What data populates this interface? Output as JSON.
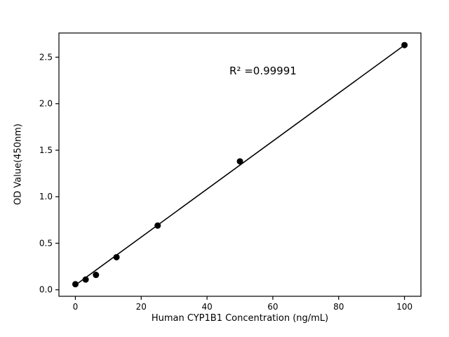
{
  "chart_data": {
    "type": "scatter",
    "title": "",
    "xlabel": "Human CYP1B1 Concentration (ng/mL)",
    "ylabel": "OD Value(450nm)",
    "annotation": "R² =0.99991",
    "x": [
      0,
      3.125,
      6.25,
      12.5,
      25,
      50,
      100
    ],
    "y": [
      0.06,
      0.11,
      0.16,
      0.35,
      0.69,
      1.38,
      2.63
    ],
    "fit_line": {
      "x": [
        0,
        100
      ],
      "y": [
        0.05,
        2.63
      ]
    },
    "xlim": [
      -5,
      105
    ],
    "ylim": [
      -0.07,
      2.76
    ],
    "xticks": [
      0,
      20,
      40,
      60,
      80,
      100
    ],
    "yticks": [
      0.0,
      0.5,
      1.0,
      1.5,
      2.0,
      2.5
    ],
    "grid": false,
    "legend": "none",
    "point_color": "#000000",
    "line_color": "#000000",
    "frame_color": "#000000",
    "background": "#ffffff"
  }
}
